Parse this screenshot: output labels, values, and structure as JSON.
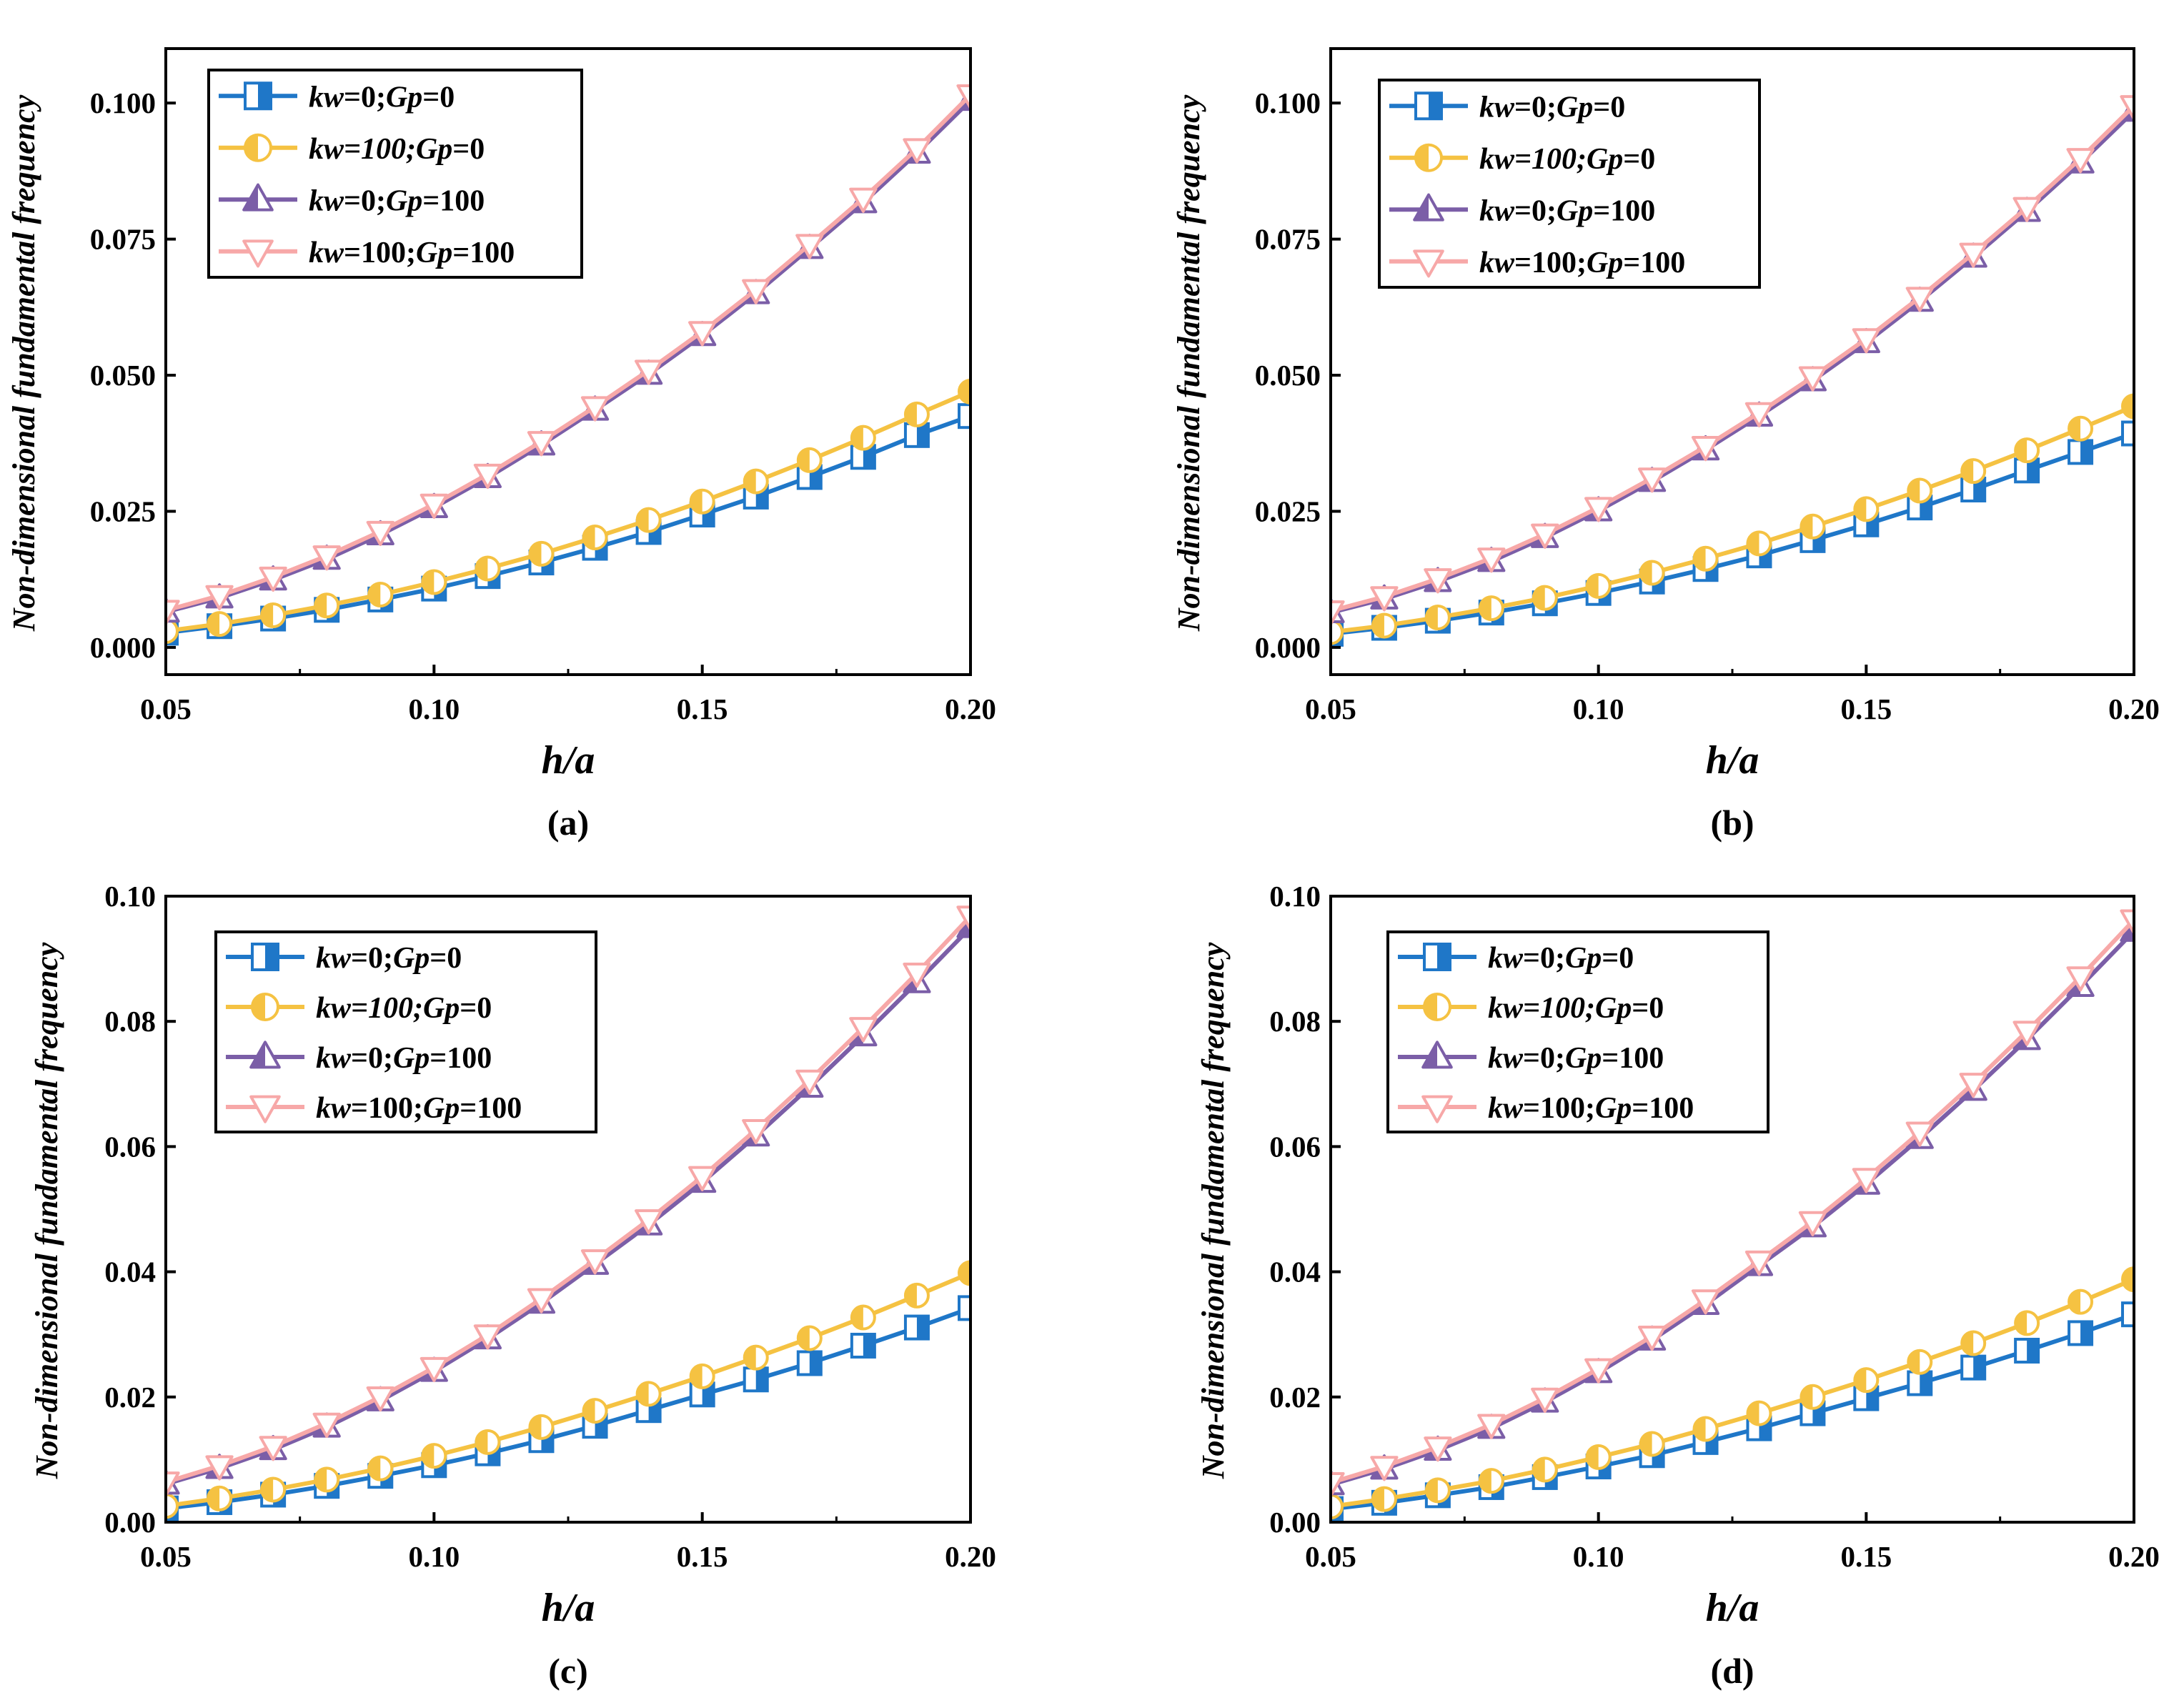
{
  "chart_data": [
    {
      "type": "line",
      "panel_label": "(a)",
      "xlabel": "h/a",
      "ylabel": "Non-dimensional fundamental frequency",
      "xlim": [
        0.05,
        0.2
      ],
      "ylim": [
        -0.005,
        0.11
      ],
      "x_ticks": [
        "0.05",
        "0.10",
        "0.15",
        "0.20"
      ],
      "x_tick_values": [
        0.05,
        0.1,
        0.15,
        0.2
      ],
      "y_ticks": [
        "0.000",
        "0.025",
        "0.050",
        "0.075",
        "0.100"
      ],
      "y_tick_values": [
        0.0,
        0.025,
        0.05,
        0.075,
        0.1
      ],
      "legend_position": "top-left",
      "x": [
        0.05,
        0.06,
        0.07,
        0.08,
        0.09,
        0.1,
        0.11,
        0.12,
        0.13,
        0.14,
        0.15,
        0.16,
        0.17,
        0.18,
        0.19,
        0.2
      ],
      "series": [
        {
          "name": "kw=0;Gp=0",
          "legend": [
            {
              "t": "kw",
              "i": true
            },
            {
              "t": "=0;",
              "i": false
            },
            {
              "t": "Gp",
              "i": true
            },
            {
              "t": "=0",
              "i": false
            }
          ],
          "values": [
            0.0027,
            0.0039,
            0.0053,
            0.0069,
            0.0088,
            0.0108,
            0.0131,
            0.0156,
            0.0183,
            0.0212,
            0.0244,
            0.0277,
            0.0313,
            0.035,
            0.039,
            0.0425
          ]
        },
        {
          "name": "kw=100;Gp=0",
          "legend": [
            {
              "t": "kw=100;",
              "i": true
            },
            {
              "t": "Gp",
              "i": true
            },
            {
              "t": "=0",
              "i": false
            }
          ],
          "values": [
            0.003,
            0.0043,
            0.0059,
            0.0077,
            0.0097,
            0.012,
            0.0145,
            0.0172,
            0.0202,
            0.0234,
            0.0268,
            0.0305,
            0.0344,
            0.0385,
            0.0428,
            0.047
          ]
        },
        {
          "name": "kw=0;Gp=100",
          "legend": [
            {
              "t": "kw",
              "i": true
            },
            {
              "t": "=0;",
              "i": false
            },
            {
              "t": "Gp",
              "i": true
            },
            {
              "t": "=100",
              "i": false
            }
          ],
          "values": [
            0.0065,
            0.0091,
            0.0124,
            0.0162,
            0.0207,
            0.0257,
            0.0312,
            0.0372,
            0.0436,
            0.0502,
            0.0573,
            0.065,
            0.0733,
            0.0817,
            0.0908,
            0.1005
          ]
        },
        {
          "name": "kw=100;Gp=100",
          "legend": [
            {
              "t": "kw",
              "i": true
            },
            {
              "t": "=100;",
              "i": false
            },
            {
              "t": "Gp",
              "i": true
            },
            {
              "t": "=100",
              "i": false
            }
          ],
          "values": [
            0.0068,
            0.0095,
            0.0129,
            0.0168,
            0.0213,
            0.0263,
            0.0318,
            0.0378,
            0.0442,
            0.0509,
            0.058,
            0.0657,
            0.074,
            0.0825,
            0.0916,
            0.1015
          ]
        }
      ]
    },
    {
      "type": "line",
      "panel_label": "(b)",
      "xlabel": "h/a",
      "ylabel": "Non-dimensional fundamental frequency",
      "xlim": [
        0.05,
        0.2
      ],
      "ylim": [
        -0.005,
        0.11
      ],
      "x_ticks": [
        "0.05",
        "0.10",
        "0.15",
        "0.20"
      ],
      "x_tick_values": [
        0.05,
        0.1,
        0.15,
        0.2
      ],
      "y_ticks": [
        "0.000",
        "0.025",
        "0.050",
        "0.075",
        "0.100"
      ],
      "y_tick_values": [
        0.0,
        0.025,
        0.05,
        0.075,
        0.1
      ],
      "legend_position": "top-left",
      "x": [
        0.05,
        0.06,
        0.07,
        0.08,
        0.09,
        0.1,
        0.11,
        0.12,
        0.13,
        0.14,
        0.15,
        0.16,
        0.17,
        0.18,
        0.19,
        0.2
      ],
      "series": [
        {
          "name": "kw=0;Gp=0",
          "legend": [
            {
              "t": "kw",
              "i": true
            },
            {
              "t": "=0;",
              "i": false
            },
            {
              "t": "Gp",
              "i": true
            },
            {
              "t": "=0",
              "i": false
            }
          ],
          "values": [
            0.0025,
            0.0036,
            0.0049,
            0.0064,
            0.0081,
            0.01,
            0.0121,
            0.0144,
            0.0169,
            0.0197,
            0.0226,
            0.0257,
            0.029,
            0.0325,
            0.0359,
            0.0393
          ]
        },
        {
          "name": "kw=100;Gp=0",
          "legend": [
            {
              "t": "kw=100;",
              "i": true
            },
            {
              "t": "Gp",
              "i": true
            },
            {
              "t": "=0",
              "i": false
            }
          ],
          "values": [
            0.0028,
            0.004,
            0.0055,
            0.0072,
            0.0091,
            0.0113,
            0.0137,
            0.0163,
            0.0191,
            0.0222,
            0.0254,
            0.0288,
            0.0324,
            0.0362,
            0.0402,
            0.0443
          ]
        },
        {
          "name": "kw=0;Gp=100",
          "legend": [
            {
              "t": "kw",
              "i": true
            },
            {
              "t": "=0;",
              "i": false
            },
            {
              "t": "Gp",
              "i": true
            },
            {
              "t": "=100",
              "i": false
            }
          ],
          "values": [
            0.0064,
            0.0089,
            0.0121,
            0.0158,
            0.0202,
            0.0251,
            0.0305,
            0.0363,
            0.0425,
            0.049,
            0.056,
            0.0636,
            0.0717,
            0.0801,
            0.089,
            0.0985
          ]
        },
        {
          "name": "kw=100;Gp=100",
          "legend": [
            {
              "t": "kw",
              "i": true
            },
            {
              "t": "=100;",
              "i": false
            },
            {
              "t": "Gp",
              "i": true
            },
            {
              "t": "=100",
              "i": false
            }
          ],
          "values": [
            0.0067,
            0.0093,
            0.0126,
            0.0164,
            0.0208,
            0.0257,
            0.0311,
            0.0369,
            0.0431,
            0.0497,
            0.0567,
            0.0643,
            0.0724,
            0.0808,
            0.0898,
            0.0995
          ]
        }
      ]
    },
    {
      "type": "line",
      "panel_label": "(c)",
      "xlabel": "h/a",
      "ylabel": "Non-dimensional fundamental frequency",
      "xlim": [
        0.05,
        0.2
      ],
      "ylim": [
        0.0,
        0.1
      ],
      "x_ticks": [
        "0.05",
        "0.10",
        "0.15",
        "0.20"
      ],
      "x_tick_values": [
        0.05,
        0.1,
        0.15,
        0.2
      ],
      "y_ticks": [
        "0.00",
        "0.02",
        "0.04",
        "0.06",
        "0.08",
        "0.10"
      ],
      "y_tick_values": [
        0.0,
        0.02,
        0.04,
        0.06,
        0.08,
        0.1
      ],
      "legend_position": "top-left",
      "x": [
        0.05,
        0.06,
        0.07,
        0.08,
        0.09,
        0.1,
        0.11,
        0.12,
        0.13,
        0.14,
        0.15,
        0.16,
        0.17,
        0.18,
        0.19,
        0.2
      ],
      "series": [
        {
          "name": "kw=0;Gp=0",
          "legend": [
            {
              "t": "kw",
              "i": true
            },
            {
              "t": "=0;",
              "i": false
            },
            {
              "t": "Gp",
              "i": true
            },
            {
              "t": "=0",
              "i": false
            }
          ],
          "values": [
            0.0022,
            0.0032,
            0.0044,
            0.0058,
            0.0074,
            0.0091,
            0.011,
            0.0131,
            0.0154,
            0.0179,
            0.0204,
            0.0228,
            0.0254,
            0.0282,
            0.0311,
            0.0342
          ]
        },
        {
          "name": "kw=100;Gp=0",
          "legend": [
            {
              "t": "kw=100;",
              "i": true
            },
            {
              "t": "Gp",
              "i": true
            },
            {
              "t": "=0",
              "i": false
            }
          ],
          "values": [
            0.0026,
            0.0038,
            0.0052,
            0.0068,
            0.0086,
            0.0106,
            0.0128,
            0.0152,
            0.0178,
            0.0205,
            0.0233,
            0.0263,
            0.0294,
            0.0327,
            0.0362,
            0.0398
          ]
        },
        {
          "name": "kw=0;Gp=100",
          "legend": [
            {
              "t": "kw",
              "i": true
            },
            {
              "t": "=0;",
              "i": false
            },
            {
              "t": "Gp",
              "i": true
            },
            {
              "t": "=100",
              "i": false
            }
          ],
          "values": [
            0.0061,
            0.0086,
            0.0116,
            0.0152,
            0.0194,
            0.0241,
            0.0293,
            0.035,
            0.0412,
            0.0475,
            0.0543,
            0.0617,
            0.0695,
            0.0777,
            0.0862,
            0.095
          ]
        },
        {
          "name": "kw=100;Gp=100",
          "legend": [
            {
              "t": "kw",
              "i": true
            },
            {
              "t": "=100;",
              "i": false
            },
            {
              "t": "Gp",
              "i": true
            },
            {
              "t": "=100",
              "i": false
            }
          ],
          "values": [
            0.0064,
            0.009,
            0.0121,
            0.0158,
            0.02,
            0.0247,
            0.0299,
            0.0357,
            0.0419,
            0.0483,
            0.0552,
            0.0627,
            0.0706,
            0.079,
            0.0877,
            0.0968
          ]
        }
      ]
    },
    {
      "type": "line",
      "panel_label": "(d)",
      "xlabel": "h/a",
      "ylabel": "Non-dimensional fundamental frequency",
      "xlim": [
        0.05,
        0.2
      ],
      "ylim": [
        0.0,
        0.1
      ],
      "x_ticks": [
        "0.05",
        "0.10",
        "0.15",
        "0.20"
      ],
      "x_tick_values": [
        0.05,
        0.1,
        0.15,
        0.2
      ],
      "y_ticks": [
        "0.00",
        "0.02",
        "0.04",
        "0.06",
        "0.08",
        "0.10"
      ],
      "y_tick_values": [
        0.0,
        0.02,
        0.04,
        0.06,
        0.08,
        0.1
      ],
      "legend_position": "top-left",
      "x": [
        0.05,
        0.06,
        0.07,
        0.08,
        0.09,
        0.1,
        0.11,
        0.12,
        0.13,
        0.14,
        0.15,
        0.16,
        0.17,
        0.18,
        0.19,
        0.2
      ],
      "series": [
        {
          "name": "kw=0;Gp=0",
          "legend": [
            {
              "t": "kw",
              "i": true
            },
            {
              "t": "=0;",
              "i": false
            },
            {
              "t": "Gp",
              "i": true
            },
            {
              "t": "=0",
              "i": false
            }
          ],
          "values": [
            0.0021,
            0.0031,
            0.0043,
            0.0056,
            0.0072,
            0.0089,
            0.0107,
            0.0128,
            0.015,
            0.0174,
            0.0198,
            0.0222,
            0.0247,
            0.0274,
            0.0302,
            0.0332
          ]
        },
        {
          "name": "kw=100;Gp=0",
          "legend": [
            {
              "t": "kw=100;",
              "i": true
            },
            {
              "t": "Gp",
              "i": true
            },
            {
              "t": "=0",
              "i": false
            }
          ],
          "values": [
            0.0025,
            0.0037,
            0.0051,
            0.0066,
            0.0084,
            0.0104,
            0.0125,
            0.0149,
            0.0174,
            0.02,
            0.0227,
            0.0256,
            0.0286,
            0.0318,
            0.0352,
            0.0388
          ]
        },
        {
          "name": "kw=0;Gp=100",
          "legend": [
            {
              "t": "kw",
              "i": true
            },
            {
              "t": "=0;",
              "i": false
            },
            {
              "t": "Gp",
              "i": true
            },
            {
              "t": "=100",
              "i": false
            }
          ],
          "values": [
            0.006,
            0.0085,
            0.0115,
            0.015,
            0.0192,
            0.0239,
            0.0291,
            0.0348,
            0.041,
            0.0472,
            0.054,
            0.0613,
            0.069,
            0.0771,
            0.0856,
            0.0944
          ]
        },
        {
          "name": "kw=100;Gp=100",
          "legend": [
            {
              "t": "kw",
              "i": true
            },
            {
              "t": "=100;",
              "i": false
            },
            {
              "t": "Gp",
              "i": true
            },
            {
              "t": "=100",
              "i": false
            }
          ],
          "values": [
            0.0063,
            0.0089,
            0.012,
            0.0156,
            0.0198,
            0.0245,
            0.0297,
            0.0355,
            0.0417,
            0.048,
            0.0549,
            0.0623,
            0.0701,
            0.0784,
            0.0871,
            0.0962
          ]
        }
      ]
    }
  ],
  "series_styles": [
    {
      "color": "#1f77c8",
      "marker": "square"
    },
    {
      "color": "#f5c242",
      "marker": "circle"
    },
    {
      "color": "#7b5ea7",
      "marker": "triangle-up"
    },
    {
      "color": "#f7a8a8",
      "marker": "triangle-down"
    }
  ]
}
